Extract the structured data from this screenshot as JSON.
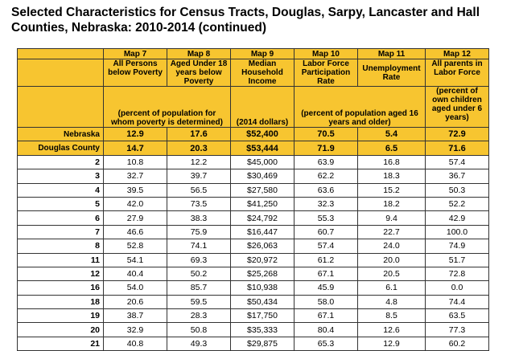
{
  "title": "Selected Characteristics for Census Tracts, Douglas, Sarpy, Lancaster and Hall Counties, Nebraska: 2010-2014 (continued)",
  "columns": [
    {
      "map": "Map 7",
      "desc": "All Persons below Poverty"
    },
    {
      "map": "Map 8",
      "desc": "Aged Under 18 years below Poverty"
    },
    {
      "map": "Map 9",
      "desc": "Median Household Income"
    },
    {
      "map": "Map 10",
      "desc": "Labor Force Participation Rate"
    },
    {
      "map": "Map 11",
      "desc": "Unemployment Rate"
    },
    {
      "map": "Map 12",
      "desc": "All parents in Labor Force"
    }
  ],
  "units": {
    "poverty": "(percent of population for whom poverty is determined)",
    "income": "(2014 dollars)",
    "labor": "(percent of population aged 16 years and older)",
    "parents": "(percent of own children aged under 6 years)"
  },
  "summary_rows": [
    {
      "label": "Nebraska",
      "values": [
        "12.9",
        "17.6",
        "$52,400",
        "70.5",
        "5.4",
        "72.9"
      ]
    },
    {
      "label": "Douglas County",
      "values": [
        "14.7",
        "20.3",
        "$53,444",
        "71.9",
        "6.5",
        "71.6"
      ]
    }
  ],
  "tract_rows": [
    {
      "label": "2",
      "values": [
        "10.8",
        "12.2",
        "$45,000",
        "63.9",
        "16.8",
        "57.4"
      ]
    },
    {
      "label": "3",
      "values": [
        "32.7",
        "39.7",
        "$30,469",
        "62.2",
        "18.3",
        "36.7"
      ]
    },
    {
      "label": "4",
      "values": [
        "39.5",
        "56.5",
        "$27,580",
        "63.6",
        "15.2",
        "50.3"
      ]
    },
    {
      "label": "5",
      "values": [
        "42.0",
        "73.5",
        "$41,250",
        "32.3",
        "18.2",
        "52.2"
      ]
    },
    {
      "label": "6",
      "values": [
        "27.9",
        "38.3",
        "$24,792",
        "55.3",
        "9.4",
        "42.9"
      ]
    },
    {
      "label": "7",
      "values": [
        "46.6",
        "75.9",
        "$16,447",
        "60.7",
        "22.7",
        "100.0"
      ]
    },
    {
      "label": "8",
      "values": [
        "52.8",
        "74.1",
        "$26,063",
        "57.4",
        "24.0",
        "74.9"
      ]
    },
    {
      "label": "11",
      "values": [
        "54.1",
        "69.3",
        "$20,972",
        "61.2",
        "20.0",
        "51.7"
      ]
    },
    {
      "label": "12",
      "values": [
        "40.4",
        "50.2",
        "$25,268",
        "67.1",
        "20.5",
        "72.8"
      ]
    },
    {
      "label": "16",
      "values": [
        "54.0",
        "85.7",
        "$10,938",
        "45.9",
        "6.1",
        "0.0"
      ]
    },
    {
      "label": "18",
      "values": [
        "20.6",
        "59.5",
        "$50,434",
        "58.0",
        "4.8",
        "74.4"
      ]
    },
    {
      "label": "19",
      "values": [
        "38.7",
        "28.3",
        "$17,750",
        "67.1",
        "8.5",
        "63.5"
      ]
    },
    {
      "label": "20",
      "values": [
        "32.9",
        "50.8",
        "$35,333",
        "80.4",
        "12.6",
        "77.3"
      ]
    },
    {
      "label": "21",
      "values": [
        "40.8",
        "49.3",
        "$29,875",
        "65.3",
        "12.9",
        "60.2"
      ]
    }
  ]
}
